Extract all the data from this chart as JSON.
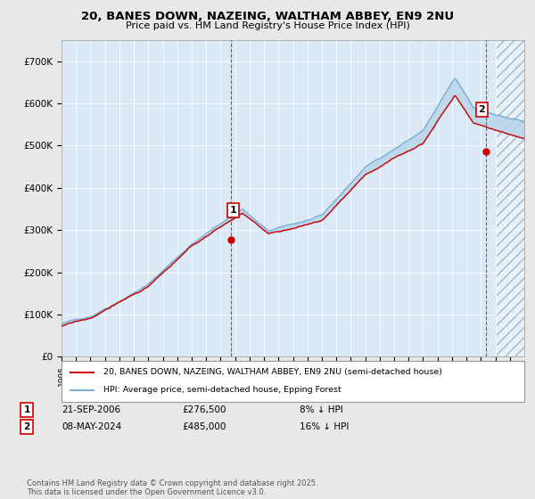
{
  "title1": "20, BANES DOWN, NAZEING, WALTHAM ABBEY, EN9 2NU",
  "title2": "Price paid vs. HM Land Registry's House Price Index (HPI)",
  "legend_line1": "20, BANES DOWN, NAZEING, WALTHAM ABBEY, EN9 2NU (semi-detached house)",
  "legend_line2": "HPI: Average price, semi-detached house, Epping Forest",
  "annotation1_date": "21-SEP-2006",
  "annotation1_price": "£276,500",
  "annotation1_note": "8% ↓ HPI",
  "annotation2_date": "08-MAY-2024",
  "annotation2_price": "£485,000",
  "annotation2_note": "16% ↓ HPI",
  "footer": "Contains HM Land Registry data © Crown copyright and database right 2025.\nThis data is licensed under the Open Government Licence v3.0.",
  "red_color": "#cc0000",
  "blue_color": "#7aafd4",
  "blue_fill": "#b8d4ea",
  "bg_color": "#e8e8e8",
  "plot_bg": "#dbe8f5",
  "annotation_box_color": "#cc0000",
  "ylim": [
    0,
    750000
  ],
  "yticks": [
    0,
    100000,
    200000,
    300000,
    400000,
    500000,
    600000,
    700000
  ],
  "ytick_labels": [
    "£0",
    "£100K",
    "£200K",
    "£300K",
    "£400K",
    "£500K",
    "£600K",
    "£700K"
  ],
  "xstart_year": 1995,
  "xend_year": 2027,
  "sale1_year": 2006.72,
  "sale1_price": 276500,
  "sale2_year": 2024.36,
  "sale2_price": 485000
}
